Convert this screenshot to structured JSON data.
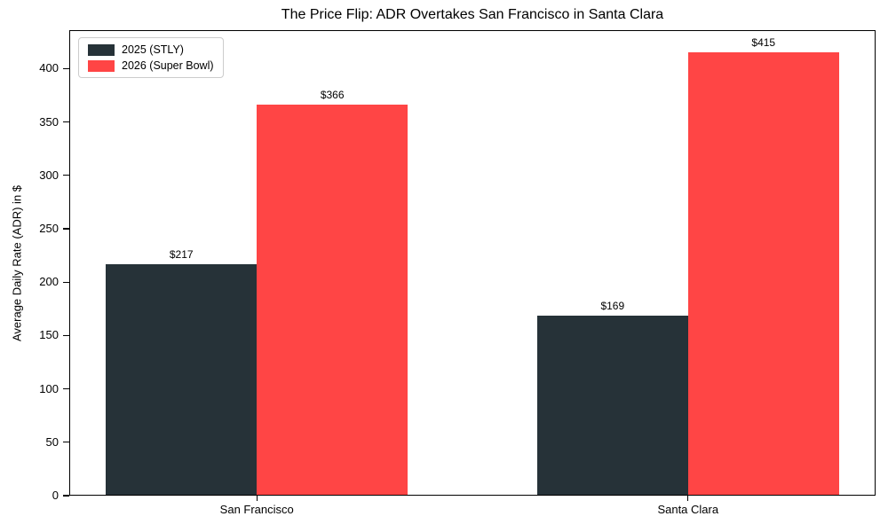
{
  "chart_data": {
    "type": "bar",
    "title": "The Price Flip: ADR Overtakes San Francisco in Santa Clara",
    "categories": [
      "San Francisco",
      "Santa Clara"
    ],
    "series": [
      {
        "name": "2025 (STLY)",
        "color": "#263238",
        "values": [
          217,
          169
        ],
        "labels": [
          "$217",
          "$169"
        ]
      },
      {
        "name": "2026 (Super Bowl)",
        "color": "#FF4545",
        "values": [
          366,
          415
        ],
        "labels": [
          "$366",
          "$415"
        ]
      }
    ],
    "xlabel": "",
    "ylabel": "Average Daily Rate (ADR) in $",
    "ylim": [
      0,
      436
    ],
    "yticks": [
      0,
      50,
      100,
      150,
      200,
      250,
      300,
      350,
      400
    ],
    "grid": false,
    "legend_position": "upper-left",
    "bar_width_fraction": 0.35,
    "spine_color": "#000000",
    "background_color": "#ffffff"
  }
}
